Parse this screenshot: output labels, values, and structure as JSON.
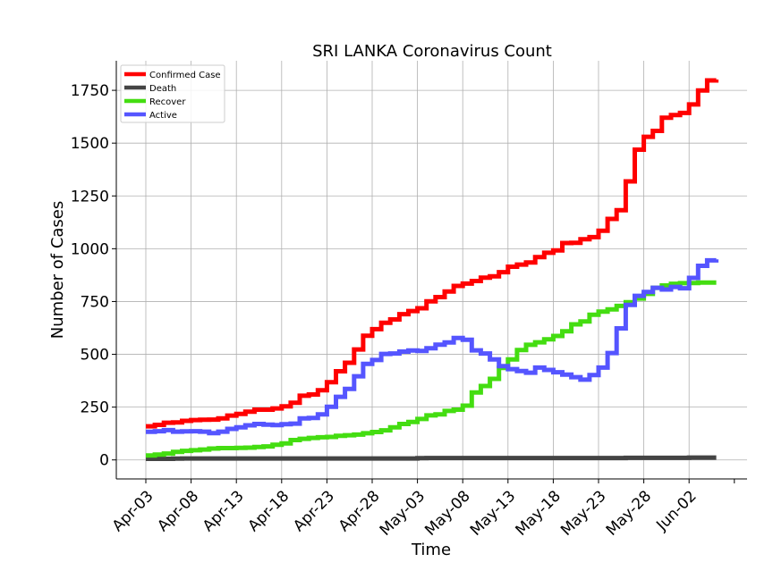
{
  "chart_data": {
    "type": "line",
    "title": "SRI LANKA Coronavirus Count",
    "xlabel": "Time",
    "ylabel": "Number of Cases",
    "ylim": [
      -90,
      1890
    ],
    "yticks": [
      0,
      250,
      500,
      750,
      1000,
      1250,
      1500,
      1750
    ],
    "xticks": [
      "Apr-03",
      "Apr-08",
      "Apr-13",
      "Apr-18",
      "Apr-23",
      "Apr-28",
      "May-03",
      "May-08",
      "May-13",
      "May-18",
      "May-23",
      "May-28",
      "Jun-02"
    ],
    "grid": true,
    "legend_position": "top-left",
    "x": [
      "Apr-03",
      "Apr-04",
      "Apr-05",
      "Apr-06",
      "Apr-07",
      "Apr-08",
      "Apr-09",
      "Apr-10",
      "Apr-11",
      "Apr-12",
      "Apr-13",
      "Apr-14",
      "Apr-15",
      "Apr-16",
      "Apr-17",
      "Apr-18",
      "Apr-19",
      "Apr-20",
      "Apr-21",
      "Apr-22",
      "Apr-23",
      "Apr-24",
      "Apr-25",
      "Apr-26",
      "Apr-27",
      "Apr-28",
      "Apr-29",
      "Apr-30",
      "May-01",
      "May-02",
      "May-03",
      "May-04",
      "May-05",
      "May-06",
      "May-07",
      "May-08",
      "May-09",
      "May-10",
      "May-11",
      "May-12",
      "May-13",
      "May-14",
      "May-15",
      "May-16",
      "May-17",
      "May-18",
      "May-19",
      "May-20",
      "May-21",
      "May-22",
      "May-23",
      "May-24",
      "May-25",
      "May-26",
      "May-27",
      "May-28",
      "May-29",
      "May-30",
      "May-31",
      "Jun-01",
      "Jun-02",
      "Jun-03",
      "Jun-04",
      "Jun-05"
    ],
    "series": [
      {
        "name": "Confirmed Case",
        "color": "#ff0000",
        "values": [
          159,
          166,
          176,
          178,
          185,
          189,
          190,
          191,
          197,
          210,
          218,
          228,
          238,
          238,
          244,
          254,
          271,
          304,
          310,
          330,
          368,
          420,
          460,
          523,
          588,
          619,
          649,
          665,
          690,
          705,
          718,
          751,
          771,
          797,
          824,
          835,
          847,
          863,
          869,
          889,
          915,
          925,
          935,
          960,
          981,
          992,
          1027,
          1028,
          1045,
          1055,
          1085,
          1141,
          1182,
          1319,
          1469,
          1530,
          1558,
          1620,
          1633,
          1643,
          1683,
          1749,
          1797,
          1801
        ]
      },
      {
        "name": "Death",
        "color": "#444444",
        "values": [
          5,
          5,
          5,
          6,
          7,
          7,
          7,
          7,
          7,
          7,
          7,
          7,
          7,
          7,
          7,
          7,
          7,
          7,
          7,
          7,
          7,
          7,
          7,
          7,
          7,
          7,
          7,
          7,
          7,
          7,
          8,
          9,
          9,
          9,
          9,
          9,
          9,
          9,
          9,
          9,
          9,
          9,
          9,
          9,
          9,
          9,
          9,
          9,
          9,
          9,
          9,
          9,
          9,
          10,
          10,
          10,
          10,
          10,
          10,
          10,
          11,
          11,
          11,
          11
        ]
      },
      {
        "name": "Recover",
        "color": "#44dd11",
        "values": [
          21,
          25,
          30,
          38,
          43,
          46,
          49,
          54,
          56,
          56,
          57,
          58,
          61,
          64,
          72,
          78,
          94,
          100,
          104,
          107,
          109,
          114,
          117,
          120,
          126,
          132,
          140,
          154,
          170,
          180,
          194,
          211,
          216,
          232,
          238,
          257,
          319,
          350,
          384,
          436,
          476,
          520,
          545,
          557,
          571,
          587,
          609,
          642,
          656,
          687,
          702,
          713,
          729,
          747,
          764,
          786,
          815,
          826,
          834,
          837,
          838,
          840,
          840,
          840
        ]
      },
      {
        "name": "Active",
        "color": "#5555ff",
        "values": [
          133,
          136,
          141,
          134,
          135,
          136,
          134,
          127,
          134,
          147,
          154,
          164,
          170,
          167,
          165,
          169,
          172,
          197,
          199,
          216,
          252,
          299,
          336,
          396,
          455,
          473,
          502,
          504,
          513,
          518,
          516,
          529,
          546,
          556,
          577,
          569,
          519,
          504,
          476,
          444,
          430,
          421,
          413,
          437,
          426,
          415,
          404,
          392,
          380,
          402,
          437,
          506,
          623,
          734,
          777,
          795,
          815,
          807,
          819,
          813,
          862,
          919,
          945,
          950
        ]
      }
    ]
  }
}
